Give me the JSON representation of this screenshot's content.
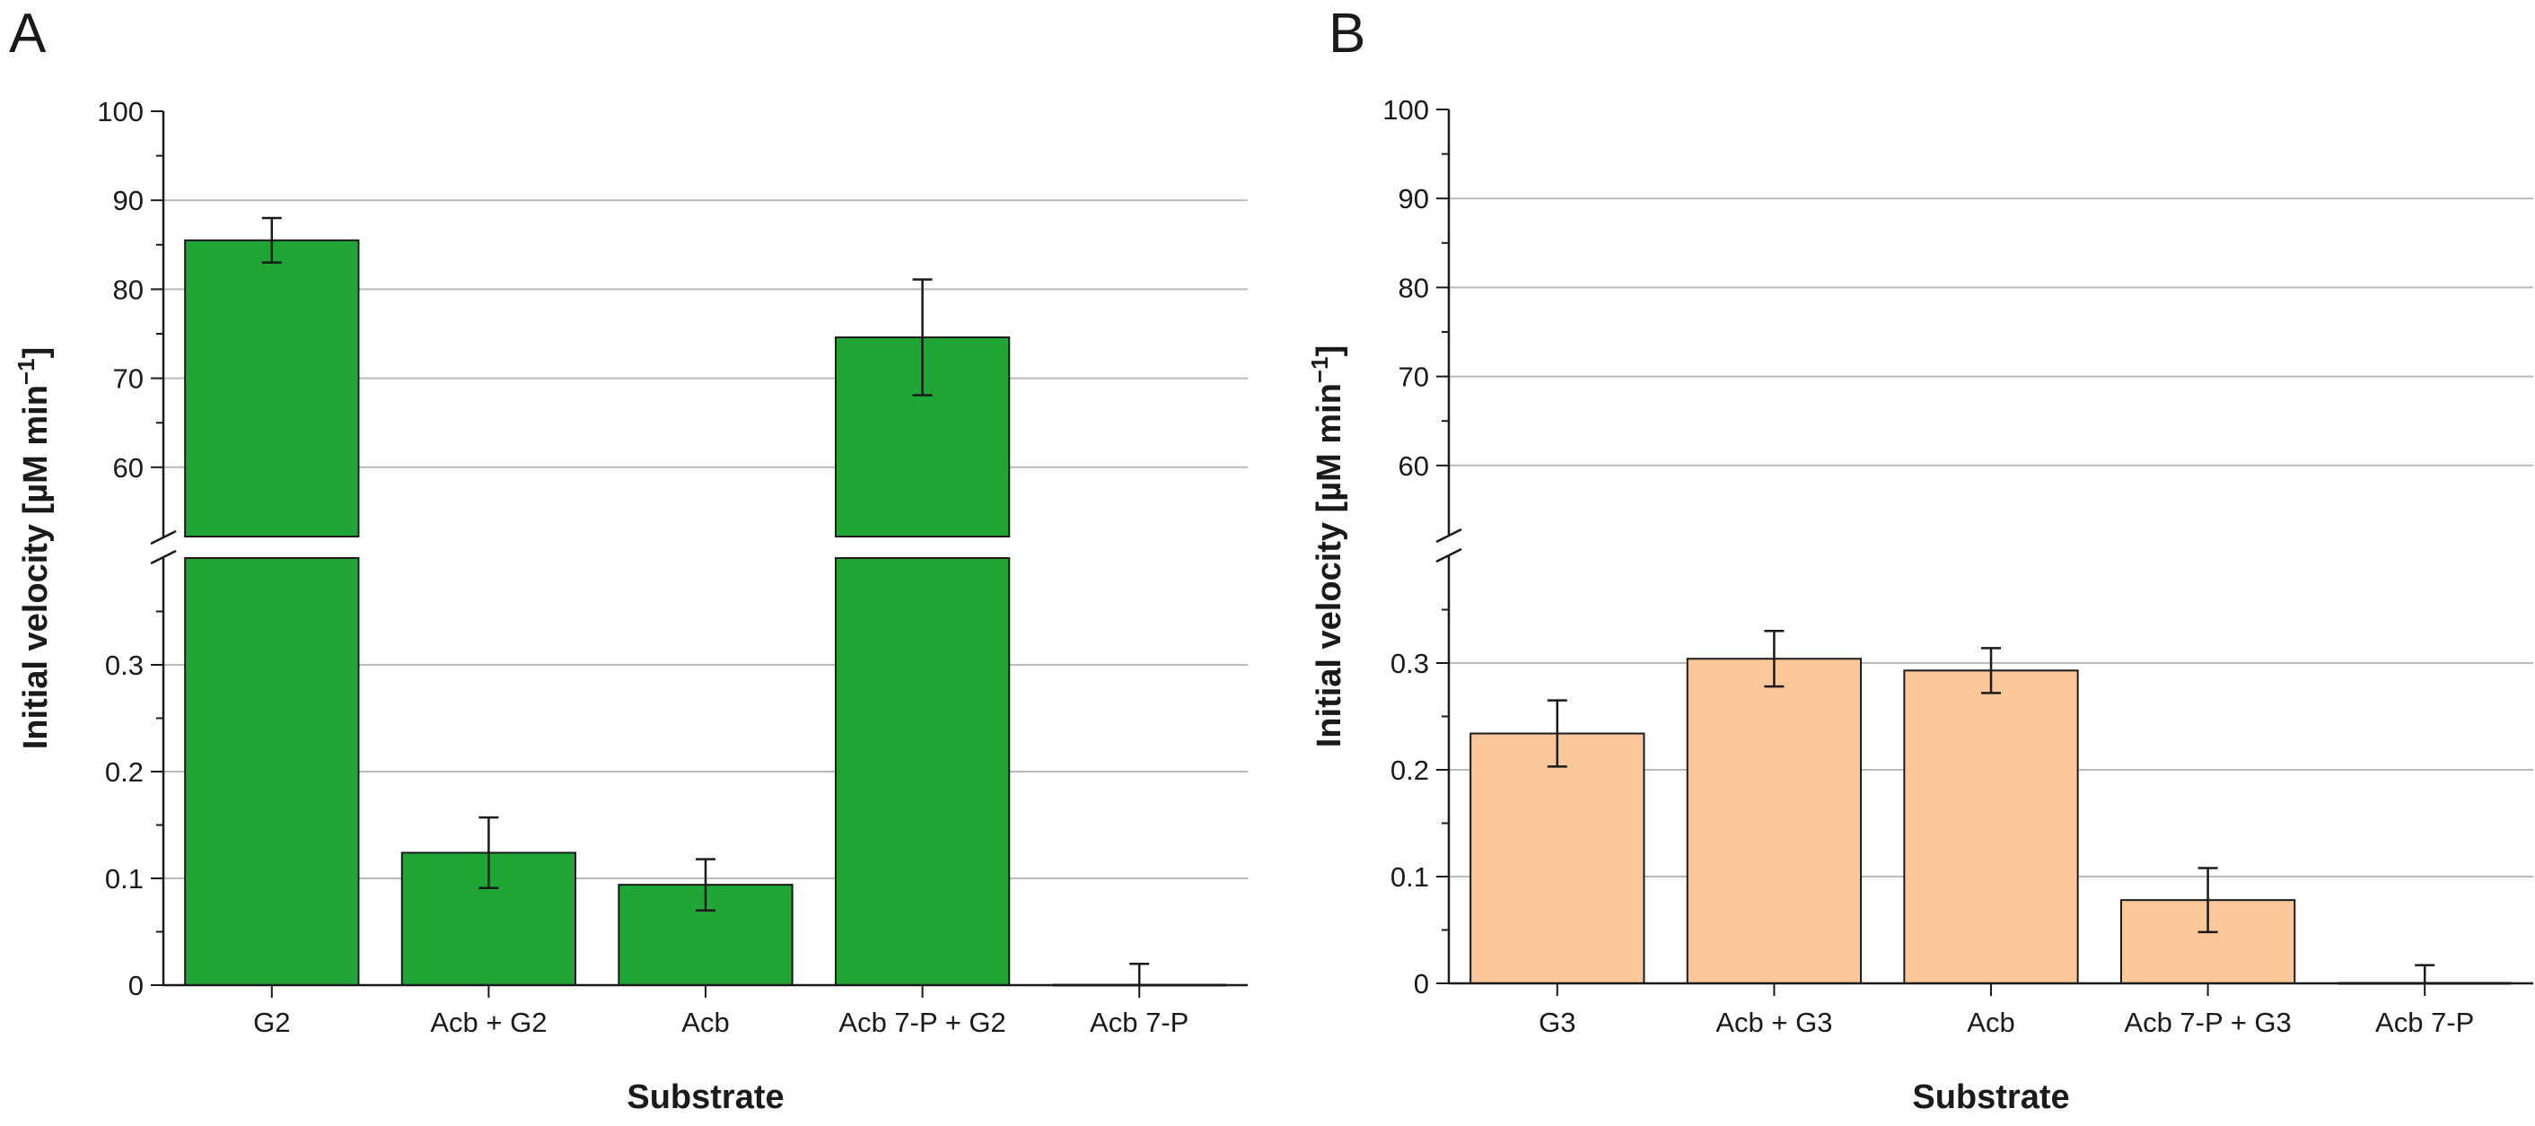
{
  "figure": {
    "panels": [
      {
        "letter": "A",
        "chart_data_index": 0
      },
      {
        "letter": "B",
        "chart_data_index": 1
      }
    ]
  },
  "chart_data": [
    {
      "type": "bar",
      "panel": "A",
      "title": "",
      "xlabel": "Substrate",
      "ylabel": "Initial velocity [µM min",
      "ylabel_superscript": "−1",
      "ylabel_suffix": "]",
      "categories": [
        "G2",
        "Acb + G2",
        "Acb",
        "Acb 7-P + G2",
        "Acb 7-P"
      ],
      "values": [
        85.5,
        0.124,
        0.094,
        74.6,
        0.0
      ],
      "errors": [
        2.5,
        0.033,
        0.024,
        6.5,
        0.02
      ],
      "bar_color": "#1fa637",
      "axis_break": true,
      "ylim_lower": [
        0,
        0.4
      ],
      "ylim_upper": [
        50,
        100
      ],
      "yticks_lower": [
        0,
        0.1,
        0.2,
        0.3
      ],
      "ytick_labels_lower": [
        "0",
        "0.1",
        "0.2",
        "0.3"
      ],
      "yticks_upper": [
        60,
        70,
        80,
        90,
        100
      ],
      "ytick_labels_upper": [
        "60",
        "70",
        "80",
        "90",
        "100"
      ],
      "grid": true
    },
    {
      "type": "bar",
      "panel": "B",
      "title": "",
      "xlabel": "Substrate",
      "ylabel": "Initial velocity [µM min",
      "ylabel_superscript": "−1",
      "ylabel_suffix": "]",
      "categories": [
        "G3",
        "Acb + G3",
        "Acb",
        "Acb 7-P + G3",
        "Acb 7-P"
      ],
      "values": [
        0.234,
        0.304,
        0.293,
        0.078,
        0.0
      ],
      "errors": [
        0.031,
        0.026,
        0.021,
        0.03,
        0.017
      ],
      "bar_color": "#fac898",
      "axis_break": true,
      "ylim_lower": [
        0,
        0.4
      ],
      "ylim_upper": [
        50,
        100
      ],
      "yticks_lower": [
        0,
        0.1,
        0.2,
        0.3
      ],
      "ytick_labels_lower": [
        "0",
        "0.1",
        "0.2",
        "0.3"
      ],
      "yticks_upper": [
        60,
        70,
        80,
        90,
        100
      ],
      "ytick_labels_upper": [
        "60",
        "70",
        "80",
        "90",
        "100"
      ],
      "grid": true
    }
  ]
}
